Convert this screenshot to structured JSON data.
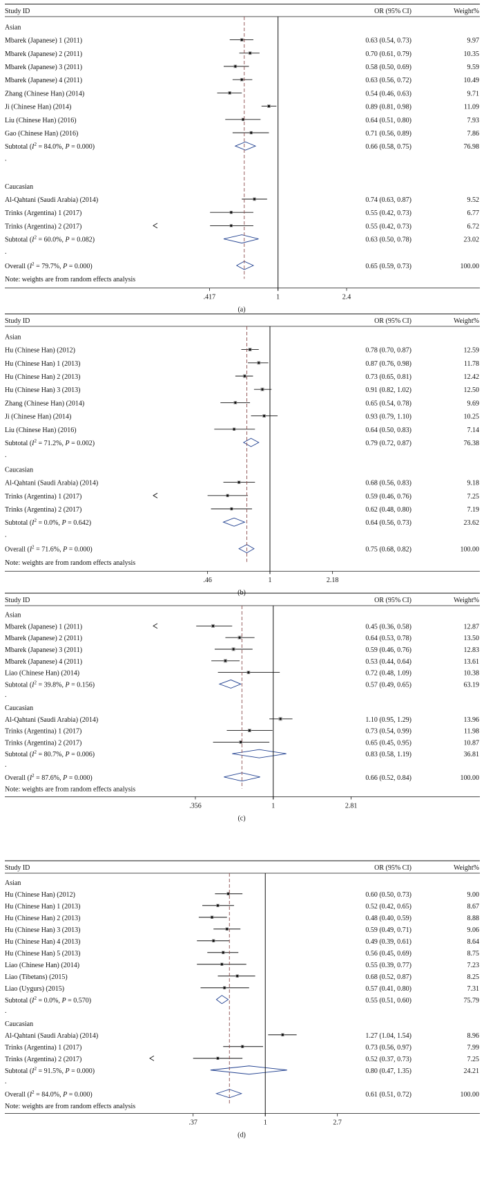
{
  "headers": {
    "study": "Study ID",
    "or": "OR (95% CI)",
    "weight": "Weight%"
  },
  "note": "Note: weights are from random effects analysis",
  "colors": {
    "ink": "#111111",
    "diamond": "#1f3f8f",
    "dashed": "#8a4a4a"
  },
  "chart_data": [
    {
      "type": "forest",
      "caption": "(a)",
      "xscale": "log",
      "xlim": [
        0.2,
        4.0
      ],
      "ticks": [
        {
          "value": 0.417,
          "label": ".417"
        },
        {
          "value": 1,
          "label": "1"
        },
        {
          "value": 2.4,
          "label": "2.4"
        }
      ],
      "overall_estimate": 0.65,
      "rows": [
        {
          "kind": "group",
          "label": "Asian"
        },
        {
          "kind": "study",
          "label": "Mbarek (Japanese) 1 (2011)",
          "or": 0.63,
          "lo": 0.54,
          "hi": 0.73,
          "ci": "0.63 (0.54, 0.73)",
          "w": "9.97"
        },
        {
          "kind": "study",
          "label": "Mbarek (Japanese) 2 (2011)",
          "or": 0.7,
          "lo": 0.61,
          "hi": 0.79,
          "ci": "0.70 (0.61, 0.79)",
          "w": "10.35"
        },
        {
          "kind": "study",
          "label": "Mbarek (Japanese) 3 (2011)",
          "or": 0.58,
          "lo": 0.5,
          "hi": 0.69,
          "ci": "0.58 (0.50, 0.69)",
          "w": "9.59"
        },
        {
          "kind": "study",
          "label": "Mbarek (Japanese) 4 (2011)",
          "or": 0.63,
          "lo": 0.56,
          "hi": 0.72,
          "ci": "0.63 (0.56, 0.72)",
          "w": "10.49"
        },
        {
          "kind": "study",
          "label": "Zhang (Chinese Han) (2014)",
          "or": 0.54,
          "lo": 0.46,
          "hi": 0.63,
          "ci": "0.54 (0.46, 0.63)",
          "w": "9.71"
        },
        {
          "kind": "study",
          "label": "Ji (Chinese Han) (2014)",
          "or": 0.89,
          "lo": 0.81,
          "hi": 0.98,
          "ci": "0.89 (0.81, 0.98)",
          "w": "11.09"
        },
        {
          "kind": "study",
          "label": "Liu (Chinese Han) (2016)",
          "or": 0.64,
          "lo": 0.51,
          "hi": 0.8,
          "ci": "0.64 (0.51, 0.80)",
          "w": "7.93"
        },
        {
          "kind": "study",
          "label": "Gao (Chinese Han) (2016)",
          "or": 0.71,
          "lo": 0.56,
          "hi": 0.89,
          "ci": "0.71 (0.56, 0.89)",
          "w": "7.86"
        },
        {
          "kind": "subtotal",
          "pre": "Subtotal (",
          "i2": "I",
          "post": "2 = 84.0%, ",
          "p": "P",
          "tail": " = 0.000)",
          "or": 0.66,
          "lo": 0.58,
          "hi": 0.75,
          "ci": "0.66 (0.58, 0.75)",
          "w": "76.98"
        },
        {
          "kind": "dot",
          "label": "."
        },
        {
          "kind": "blank"
        },
        {
          "kind": "group",
          "label": "Caucasian"
        },
        {
          "kind": "study",
          "label": "Al-Qahtani (Saudi Arabia) (2014)",
          "or": 0.74,
          "lo": 0.63,
          "hi": 0.87,
          "ci": "0.74 (0.63, 0.87)",
          "w": "9.52"
        },
        {
          "kind": "study",
          "label": "Trinks (Argentina) 1 (2017)",
          "or": 0.55,
          "lo": 0.42,
          "hi": 0.73,
          "ci": "0.55 (0.42, 0.73)",
          "w": "6.77"
        },
        {
          "kind": "study",
          "label": "Trinks (Argentina) 2 (2017)",
          "or": 0.55,
          "lo": 0.42,
          "hi": 0.73,
          "ci": "0.55 (0.42, 0.73)",
          "w": "6.72",
          "arrow": true
        },
        {
          "kind": "subtotal",
          "pre": "Subtotal (",
          "i2": "I",
          "post": "2 = 60.0%, ",
          "p": "P",
          "tail": " = 0.082)",
          "or": 0.63,
          "lo": 0.5,
          "hi": 0.78,
          "ci": "0.63 (0.50, 0.78)",
          "w": "23.02"
        },
        {
          "kind": "dot",
          "label": "."
        },
        {
          "kind": "subtotal",
          "overall": true,
          "pre": "Overall (",
          "i2": "I",
          "post": "2 = 79.7%, ",
          "p": "P",
          "tail": " = 0.000)",
          "or": 0.65,
          "lo": 0.59,
          "hi": 0.73,
          "ci": "0.65 (0.59, 0.73)",
          "w": "100.00"
        },
        {
          "kind": "note"
        }
      ]
    },
    {
      "type": "forest",
      "caption": "(b)",
      "xscale": "log",
      "xlim": [
        0.23,
        3.6
      ],
      "ticks": [
        {
          "value": 0.46,
          "label": ".46"
        },
        {
          "value": 1,
          "label": "1"
        },
        {
          "value": 2.18,
          "label": "2.18"
        }
      ],
      "overall_estimate": 0.75,
      "rows": [
        {
          "kind": "group",
          "label": "Asian"
        },
        {
          "kind": "study",
          "label": "Hu (Chinese Han) (2012)",
          "or": 0.78,
          "lo": 0.7,
          "hi": 0.87,
          "ci": "0.78 (0.70, 0.87)",
          "w": "12.59"
        },
        {
          "kind": "study",
          "label": "Hu (Chinese Han) 1 (2013)",
          "or": 0.87,
          "lo": 0.76,
          "hi": 0.98,
          "ci": "0.87 (0.76, 0.98)",
          "w": "11.78"
        },
        {
          "kind": "study",
          "label": "Hu (Chinese Han) 2 (2013)",
          "or": 0.73,
          "lo": 0.65,
          "hi": 0.81,
          "ci": "0.73 (0.65, 0.81)",
          "w": "12.42"
        },
        {
          "kind": "study",
          "label": "Hu (Chinese Han) 3 (2013)",
          "or": 0.91,
          "lo": 0.82,
          "hi": 1.02,
          "ci": "0.91 (0.82, 1.02)",
          "w": "12.50"
        },
        {
          "kind": "study",
          "label": "Zhang (Chinese Han) (2014)",
          "or": 0.65,
          "lo": 0.54,
          "hi": 0.78,
          "ci": "0.65 (0.54, 0.78)",
          "w": "9.69"
        },
        {
          "kind": "study",
          "label": "Ji (Chinese Han) (2014)",
          "or": 0.93,
          "lo": 0.79,
          "hi": 1.1,
          "ci": "0.93 (0.79, 1.10)",
          "w": "10.25"
        },
        {
          "kind": "study",
          "label": "Liu (Chinese Han) (2016)",
          "or": 0.64,
          "lo": 0.5,
          "hi": 0.83,
          "ci": "0.64 (0.50, 0.83)",
          "w": "7.14"
        },
        {
          "kind": "subtotal",
          "pre": "Subtotal (",
          "i2": "I",
          "post": "2 = 71.2%, ",
          "p": "P",
          "tail": " = 0.002)",
          "or": 0.79,
          "lo": 0.72,
          "hi": 0.87,
          "ci": "0.79 (0.72, 0.87)",
          "w": "76.38"
        },
        {
          "kind": "dot",
          "label": "."
        },
        {
          "kind": "group",
          "label": "Caucasian"
        },
        {
          "kind": "study",
          "label": "Al-Qahtani (Saudi Arabia) (2014)",
          "or": 0.68,
          "lo": 0.56,
          "hi": 0.83,
          "ci": "0.68 (0.56, 0.83)",
          "w": "9.18"
        },
        {
          "kind": "study",
          "label": "Trinks (Argentina) 1 (2017)",
          "or": 0.59,
          "lo": 0.46,
          "hi": 0.76,
          "ci": "0.59 (0.46, 0.76)",
          "w": "7.25",
          "arrow": true
        },
        {
          "kind": "study",
          "label": "Trinks (Argentina) 2 (2017)",
          "or": 0.62,
          "lo": 0.48,
          "hi": 0.8,
          "ci": "0.62 (0.48, 0.80)",
          "w": "7.19"
        },
        {
          "kind": "subtotal",
          "pre": "Subtotal (",
          "i2": "I",
          "post": "2 =  0.0%, ",
          "p": "P",
          "tail": " = 0.642)",
          "or": 0.64,
          "lo": 0.56,
          "hi": 0.73,
          "ci": "0.64 (0.56, 0.73)",
          "w": "23.62"
        },
        {
          "kind": "dot",
          "label": "."
        },
        {
          "kind": "subtotal",
          "overall": true,
          "pre": "Overall (",
          "i2": "I",
          "post": "2 = 71.6%, ",
          "p": "P",
          "tail": " = 0.000)",
          "or": 0.75,
          "lo": 0.68,
          "hi": 0.82,
          "ci": "0.75 (0.68, 0.82)",
          "w": "100.00"
        },
        {
          "kind": "note"
        }
      ]
    },
    {
      "type": "forest",
      "caption": "(c)",
      "xscale": "log",
      "xlim": [
        0.2,
        4.5
      ],
      "ticks": [
        {
          "value": 0.356,
          "label": ".356"
        },
        {
          "value": 1,
          "label": "1"
        },
        {
          "value": 2.81,
          "label": "2.81"
        }
      ],
      "overall_estimate": 0.66,
      "rows": [
        {
          "kind": "group",
          "label": "Asian"
        },
        {
          "kind": "study",
          "label": "Mbarek (Japanese) 1 (2011)",
          "or": 0.45,
          "lo": 0.36,
          "hi": 0.58,
          "ci": "0.45 (0.36, 0.58)",
          "w": "12.87",
          "arrow": true
        },
        {
          "kind": "study",
          "label": "Mbarek (Japanese) 2 (2011)",
          "or": 0.64,
          "lo": 0.53,
          "hi": 0.78,
          "ci": "0.64 (0.53, 0.78)",
          "w": "13.50"
        },
        {
          "kind": "study",
          "label": "Mbarek (Japanese) 3 (2011)",
          "or": 0.59,
          "lo": 0.46,
          "hi": 0.76,
          "ci": "0.59 (0.46, 0.76)",
          "w": "12.83"
        },
        {
          "kind": "study",
          "label": "Mbarek (Japanese) 4 (2011)",
          "or": 0.53,
          "lo": 0.44,
          "hi": 0.64,
          "ci": "0.53 (0.44, 0.64)",
          "w": "13.61"
        },
        {
          "kind": "study",
          "label": "Liao (Chinese Han) (2014)",
          "or": 0.72,
          "lo": 0.48,
          "hi": 1.09,
          "ci": "0.72 (0.48, 1.09)",
          "w": "10.38"
        },
        {
          "kind": "subtotal",
          "pre": "Subtotal (",
          "i2": "I",
          "post": "2 = 39.8%, ",
          "p": "P",
          "tail": " = 0.156)",
          "or": 0.57,
          "lo": 0.49,
          "hi": 0.65,
          "ci": "0.57 (0.49, 0.65)",
          "w": "63.19"
        },
        {
          "kind": "dot",
          "label": "."
        },
        {
          "kind": "group",
          "label": "Caucasian"
        },
        {
          "kind": "study",
          "label": "Al-Qahtani (Saudi Arabia) (2014)",
          "or": 1.1,
          "lo": 0.95,
          "hi": 1.29,
          "ci": "1.10 (0.95, 1.29)",
          "w": "13.96"
        },
        {
          "kind": "study",
          "label": "Trinks (Argentina) 1 (2017)",
          "or": 0.73,
          "lo": 0.54,
          "hi": 0.99,
          "ci": "0.73 (0.54, 0.99)",
          "w": "11.98"
        },
        {
          "kind": "study",
          "label": "Trinks (Argentina) 2 (2017)",
          "or": 0.65,
          "lo": 0.45,
          "hi": 0.95,
          "ci": "0.65 (0.45, 0.95)",
          "w": "10.87"
        },
        {
          "kind": "subtotal",
          "pre": "Subtotal (",
          "i2": "I",
          "post": "2 = 80.7%, ",
          "p": "P",
          "tail": " = 0.006)",
          "or": 0.83,
          "lo": 0.58,
          "hi": 1.19,
          "ci": "0.83 (0.58, 1.19)",
          "w": "36.81"
        },
        {
          "kind": "dot",
          "label": "."
        },
        {
          "kind": "subtotal",
          "overall": true,
          "pre": "Overall (",
          "i2": "I",
          "post": "2 = 87.6%, ",
          "p": "P",
          "tail": " = 0.000)",
          "or": 0.66,
          "lo": 0.52,
          "hi": 0.84,
          "ci": "0.66 (0.52, 0.84)",
          "w": "100.00"
        },
        {
          "kind": "note"
        }
      ]
    },
    {
      "type": "forest",
      "caption": "(d)",
      "xscale": "log",
      "xlim": [
        0.2,
        4.0
      ],
      "ticks": [
        {
          "value": 0.37,
          "label": ".37"
        },
        {
          "value": 1,
          "label": "1"
        },
        {
          "value": 2.7,
          "label": "2.7"
        }
      ],
      "overall_estimate": 0.61,
      "rows": [
        {
          "kind": "group",
          "label": "Asian"
        },
        {
          "kind": "study",
          "label": "Hu (Chinese Han) (2012)",
          "or": 0.6,
          "lo": 0.5,
          "hi": 0.73,
          "ci": "0.60 (0.50, 0.73)",
          "w": "9.00"
        },
        {
          "kind": "study",
          "label": "Hu (Chinese Han) 1 (2013)",
          "or": 0.52,
          "lo": 0.42,
          "hi": 0.65,
          "ci": "0.52 (0.42, 0.65)",
          "w": "8.67"
        },
        {
          "kind": "study",
          "label": "Hu (Chinese Han) 2 (2013)",
          "or": 0.48,
          "lo": 0.4,
          "hi": 0.59,
          "ci": "0.48 (0.40, 0.59)",
          "w": "8.88"
        },
        {
          "kind": "study",
          "label": "Hu (Chinese Han) 3 (2013)",
          "or": 0.59,
          "lo": 0.49,
          "hi": 0.71,
          "ci": "0.59 (0.49, 0.71)",
          "w": "9.06"
        },
        {
          "kind": "study",
          "label": "Hu (Chinese Han) 4 (2013)",
          "or": 0.49,
          "lo": 0.39,
          "hi": 0.61,
          "ci": "0.49 (0.39, 0.61)",
          "w": "8.64"
        },
        {
          "kind": "study",
          "label": "Hu (Chinese Han) 5 (2013)",
          "or": 0.56,
          "lo": 0.45,
          "hi": 0.69,
          "ci": "0.56 (0.45, 0.69)",
          "w": "8.75"
        },
        {
          "kind": "study",
          "label": "Liao (Chinese Han) (2014)",
          "or": 0.55,
          "lo": 0.39,
          "hi": 0.77,
          "ci": "0.55 (0.39, 0.77)",
          "w": "7.23"
        },
        {
          "kind": "study",
          "label": "Liao (Tibetans) (2015)",
          "or": 0.68,
          "lo": 0.52,
          "hi": 0.87,
          "ci": "0.68 (0.52, 0.87)",
          "w": "8.25"
        },
        {
          "kind": "study",
          "label": "Liao (Uygurs) (2015)",
          "or": 0.57,
          "lo": 0.41,
          "hi": 0.8,
          "ci": "0.57 (0.41, 0.80)",
          "w": "7.31"
        },
        {
          "kind": "subtotal",
          "pre": "Subtotal (",
          "i2": "I",
          "post": "2 = 0.0%, ",
          "p": "P",
          "tail": " = 0.570)",
          "or": 0.55,
          "lo": 0.51,
          "hi": 0.6,
          "ci": "0.55 (0.51, 0.60)",
          "w": "75.79"
        },
        {
          "kind": "dot",
          "label": "."
        },
        {
          "kind": "group",
          "label": "Caucasian"
        },
        {
          "kind": "study",
          "label": "Al-Qahtani (Saudi Arabia) (2014)",
          "or": 1.27,
          "lo": 1.04,
          "hi": 1.54,
          "ci": "1.27 (1.04, 1.54)",
          "w": "8.96"
        },
        {
          "kind": "study",
          "label": "Trinks (Argentina) 1 (2017)",
          "or": 0.73,
          "lo": 0.56,
          "hi": 0.97,
          "ci": "0.73 (0.56, 0.97)",
          "w": "7.99"
        },
        {
          "kind": "study",
          "label": "Trinks (Argentina) 2 (2017)",
          "or": 0.52,
          "lo": 0.37,
          "hi": 0.73,
          "ci": "0.52 (0.37, 0.73)",
          "w": "7.25",
          "arrow": true
        },
        {
          "kind": "subtotal",
          "pre": "Subtotal (",
          "i2": "I",
          "post": "2 = 91.5%, ",
          "p": "P",
          "tail": " = 0.000)",
          "or": 0.8,
          "lo": 0.47,
          "hi": 1.35,
          "ci": "0.80 (0.47, 1.35)",
          "w": "24.21"
        },
        {
          "kind": "dot",
          "label": "."
        },
        {
          "kind": "subtotal",
          "overall": true,
          "pre": "Overall (",
          "i2": "I",
          "post": "2 = 84.0%, ",
          "p": "P",
          "tail": " = 0.000)",
          "or": 0.61,
          "lo": 0.51,
          "hi": 0.72,
          "ci": "0.61 (0.51, 0.72)",
          "w": "100.00"
        },
        {
          "kind": "note"
        }
      ]
    }
  ]
}
